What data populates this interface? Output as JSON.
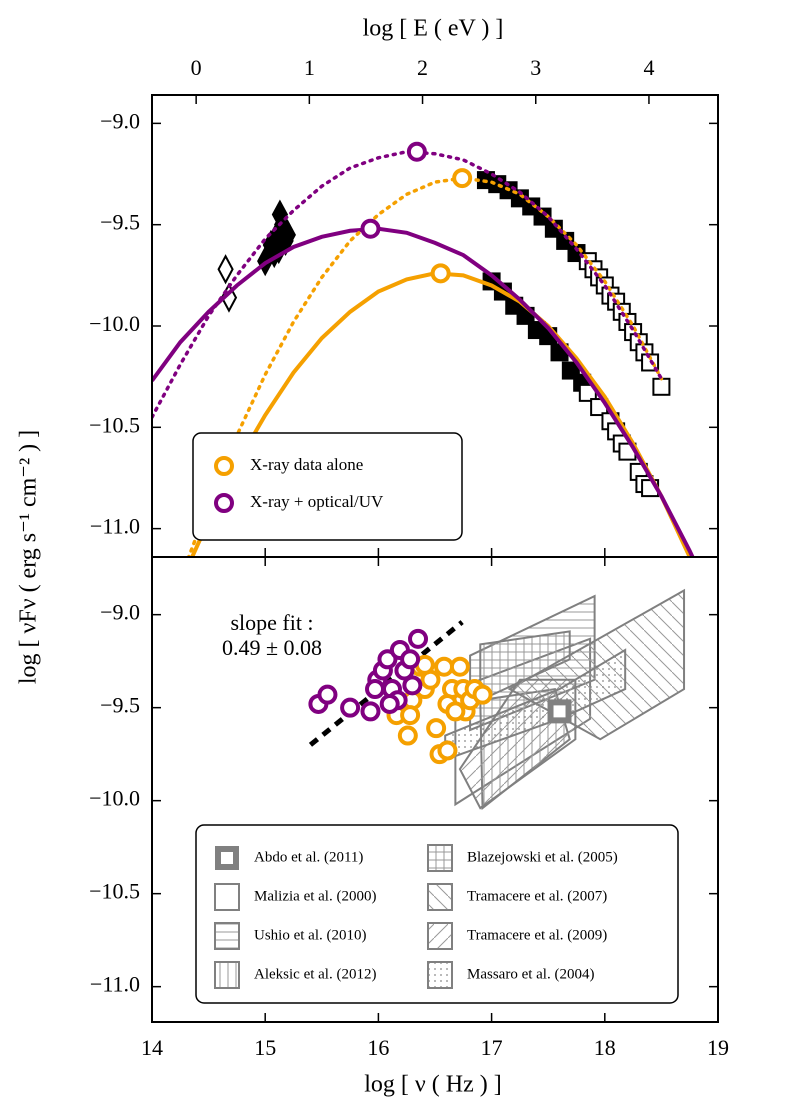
{
  "chart_data": [
    {
      "type": "line",
      "x2label": "log [ E ( eV ) ]",
      "ylabel": "log [ νFν ( erg s⁻¹ cm⁻² ) ]",
      "xlim": [
        14,
        19
      ],
      "xticks": [
        14,
        15,
        16,
        17,
        18,
        19
      ],
      "x2lim": [
        -0.39,
        4.61
      ],
      "x2ticks": [
        0,
        1,
        2,
        3,
        4
      ],
      "ylim": [
        -11.14,
        -8.86
      ],
      "yticks": [
        {
          "value": -9.0,
          "label": "−9.0"
        },
        {
          "value": -9.5,
          "label": "−9.5"
        },
        {
          "value": -10.0,
          "label": "−10.0"
        },
        {
          "value": -10.5,
          "label": "−10.5"
        },
        {
          "value": -11.0,
          "label": "−11.0"
        }
      ],
      "x": [
        14,
        14.25,
        14.5,
        14.75,
        15,
        15.25,
        15.5,
        15.75,
        16,
        16.25,
        16.5,
        16.75,
        17,
        17.25,
        17.5,
        17.75,
        18,
        18.25,
        18.5,
        18.75,
        19
      ],
      "series": [
        {
          "color": "#f5a000",
          "dashed": false,
          "peak_x": 16.55,
          "peak_y": -9.74,
          "values": [
            -11.63,
            -11.27,
            -10.96,
            -10.68,
            -10.44,
            -10.23,
            -10.06,
            -9.93,
            -9.83,
            -9.77,
            -9.74,
            -9.75,
            -9.8,
            -9.88,
            -10.0,
            -10.16,
            -10.35,
            -10.58,
            -10.84,
            -11.14,
            -11.48
          ]
        },
        {
          "color": "#800080",
          "dashed": false,
          "peak_x": 15.93,
          "peak_y": -9.52,
          "values": [
            -10.27,
            -10.08,
            -9.93,
            -9.8,
            -9.69,
            -9.61,
            -9.56,
            -9.53,
            -9.52,
            -9.54,
            -9.59,
            -9.65,
            -9.75,
            -9.87,
            -10.01,
            -10.18,
            -10.38,
            -10.6,
            -10.84,
            -11.11,
            -11.41
          ]
        },
        {
          "color": "#f5a000",
          "dashed": true,
          "peak_x": 16.74,
          "peak_y": -9.27,
          "values": [
            -11.67,
            -11.25,
            -10.88,
            -10.54,
            -10.24,
            -9.98,
            -9.76,
            -9.58,
            -9.45,
            -9.35,
            -9.29,
            -9.27,
            -9.29,
            -9.35,
            -9.46,
            -9.6,
            -9.78,
            -10.0,
            -10.26,
            null,
            null
          ]
        },
        {
          "color": "#800080",
          "dashed": true,
          "peak_x": 16.34,
          "peak_y": -9.14,
          "values": [
            -10.45,
            -10.19,
            -9.95,
            -9.75,
            -9.57,
            -9.43,
            -9.31,
            -9.22,
            -9.17,
            -9.14,
            -9.15,
            -9.18,
            -9.25,
            -9.34,
            -9.46,
            -9.62,
            -9.8,
            -10.02,
            -10.26,
            null,
            null
          ]
        }
      ],
      "markers": [
        {
          "shape": "diamond",
          "filled": false,
          "x": [
            14.65,
            14.68
          ],
          "y": [
            -9.72,
            -9.86
          ]
        },
        {
          "shape": "diamond",
          "filled": true,
          "x": [
            15.0,
            15.05,
            15.08,
            15.1,
            15.12,
            15.15,
            15.18,
            15.13,
            15.2
          ],
          "y": [
            -9.68,
            -9.6,
            -9.64,
            -9.56,
            -9.62,
            -9.5,
            -9.58,
            -9.45,
            -9.55
          ]
        },
        {
          "shape": "square",
          "filled": true,
          "x": [
            16.95,
            17.05,
            17.15,
            17.25,
            17.35,
            17.45,
            17.55,
            17.65,
            17.75
          ],
          "y": [
            -9.28,
            -9.3,
            -9.33,
            -9.37,
            -9.41,
            -9.46,
            -9.52,
            -9.58,
            -9.64
          ]
        },
        {
          "shape": "square",
          "filled": false,
          "x": [
            17.85,
            17.9,
            17.95,
            18.0,
            18.05,
            18.1,
            18.15,
            18.2,
            18.25,
            18.3,
            18.35,
            18.4,
            18.5
          ],
          "y": [
            -9.68,
            -9.72,
            -9.76,
            -9.8,
            -9.85,
            -9.88,
            -9.93,
            -9.98,
            -10.03,
            -10.08,
            -10.13,
            -10.18,
            -10.3
          ]
        },
        {
          "shape": "square",
          "filled": true,
          "x": [
            17.0,
            17.1,
            17.2,
            17.3,
            17.4,
            17.5,
            17.6,
            17.7,
            17.8
          ],
          "y": [
            -9.78,
            -9.83,
            -9.9,
            -9.95,
            -10.02,
            -10.05,
            -10.13,
            -10.22,
            -10.28
          ]
        },
        {
          "shape": "square",
          "filled": false,
          "x": [
            17.85,
            17.95,
            18.05,
            18.1,
            18.15,
            18.2,
            18.3,
            18.35,
            18.4
          ],
          "y": [
            -10.33,
            -10.4,
            -10.47,
            -10.52,
            -10.58,
            -10.62,
            -10.72,
            -10.78,
            -10.8
          ]
        }
      ],
      "legend": [
        {
          "label": "X-ray data alone",
          "color": "#f5a000"
        },
        {
          "label": "X-ray + optical/UV",
          "color": "#800080"
        }
      ]
    },
    {
      "type": "scatter",
      "xlabel": "log [ ν ( Hz ) ]",
      "xlim": [
        14,
        19
      ],
      "xticks": [
        14,
        15,
        16,
        17,
        18,
        19
      ],
      "ylim": [
        -11.19,
        -8.69
      ],
      "yticks": [
        {
          "value": -9.0,
          "label": "−9.0"
        },
        {
          "value": -9.5,
          "label": "−9.5"
        },
        {
          "value": -10.0,
          "label": "−10.0"
        },
        {
          "value": -10.5,
          "label": "−10.5"
        },
        {
          "value": -11.0,
          "label": "−11.0"
        }
      ],
      "annotation": [
        "slope fit :",
        "0.49 ± 0.08"
      ],
      "fit": {
        "x": [
          15.4,
          16.74
        ],
        "y": [
          -9.7,
          -9.04
        ]
      },
      "regions": [
        {
          "name": "Abdo et al. (2011)",
          "pattern": "square",
          "x": [
            17.6
          ],
          "y": [
            -9.52
          ]
        },
        {
          "name": "Malizia et al. (2000)",
          "pattern": "none",
          "x": [
            16.68,
            17.87,
            17.87,
            16.68
          ],
          "y": [
            -9.4,
            -9.13,
            -9.56,
            -10.02
          ]
        },
        {
          "name": "Ushio et al. (2010)",
          "pattern": "horizontal",
          "x": [
            16.81,
            17.91,
            17.91,
            16.81
          ],
          "y": [
            -9.22,
            -8.9,
            -9.35,
            -9.62
          ]
        },
        {
          "name": "Aleksic et al. (2012)",
          "pattern": "vertical",
          "x": [
            16.9,
            17.56,
            17.69,
            16.92
          ],
          "y": [
            -9.46,
            -9.4,
            -9.67,
            -10.04
          ]
        },
        {
          "name": "Blazejowski et al. (2005)",
          "pattern": "grid",
          "x": [
            16.9,
            17.69,
            17.69,
            16.9
          ],
          "y": [
            -9.16,
            -9.09,
            -9.24,
            -9.46
          ]
        },
        {
          "name": "Tramacere et al. (2007)",
          "pattern": "backslash",
          "x": [
            17.16,
            18.7,
            18.7,
            17.96
          ],
          "y": [
            -9.4,
            -8.87,
            -9.4,
            -9.67
          ]
        },
        {
          "name": "Tramacere et al. (2009)",
          "pattern": "slash",
          "x": [
            16.72,
            17.25,
            17.74,
            17.74,
            16.9
          ],
          "y": [
            -9.83,
            -9.35,
            -9.35,
            -9.67,
            -10.04
          ]
        },
        {
          "name": "Massaro et al. (2004)",
          "pattern": "dots",
          "x": [
            16.59,
            17.6,
            18.18,
            18.18,
            17.6,
            16.59
          ],
          "y": [
            -9.65,
            -9.4,
            -9.19,
            -9.4,
            -9.56,
            -9.78
          ]
        }
      ],
      "groups": [
        {
          "color": "#f5a000",
          "x": [
            16.16,
            16.26,
            16.3,
            16.37,
            16.41,
            16.46,
            16.51,
            16.54,
            16.61,
            16.58,
            16.65,
            16.61,
            16.72,
            16.75,
            16.77,
            16.81,
            16.85,
            16.92,
            16.68,
            16.41,
            16.28
          ],
          "y": [
            -9.54,
            -9.65,
            -9.46,
            -9.28,
            -9.4,
            -9.35,
            -9.61,
            -9.75,
            -9.73,
            -9.28,
            -9.4,
            -9.48,
            -9.28,
            -9.4,
            -9.52,
            -9.46,
            -9.4,
            -9.43,
            -9.52,
            -9.27,
            -9.54
          ]
        },
        {
          "color": "#800080",
          "x": [
            15.47,
            15.55,
            15.75,
            15.93,
            15.99,
            16.04,
            16.08,
            16.12,
            16.19,
            16.23,
            16.28,
            16.35,
            16.17,
            16.1,
            15.97,
            16.3
          ],
          "y": [
            -9.48,
            -9.43,
            -9.5,
            -9.52,
            -9.35,
            -9.3,
            -9.24,
            -9.4,
            -9.19,
            -9.3,
            -9.24,
            -9.13,
            -9.46,
            -9.48,
            -9.4,
            -9.38
          ]
        }
      ]
    }
  ]
}
